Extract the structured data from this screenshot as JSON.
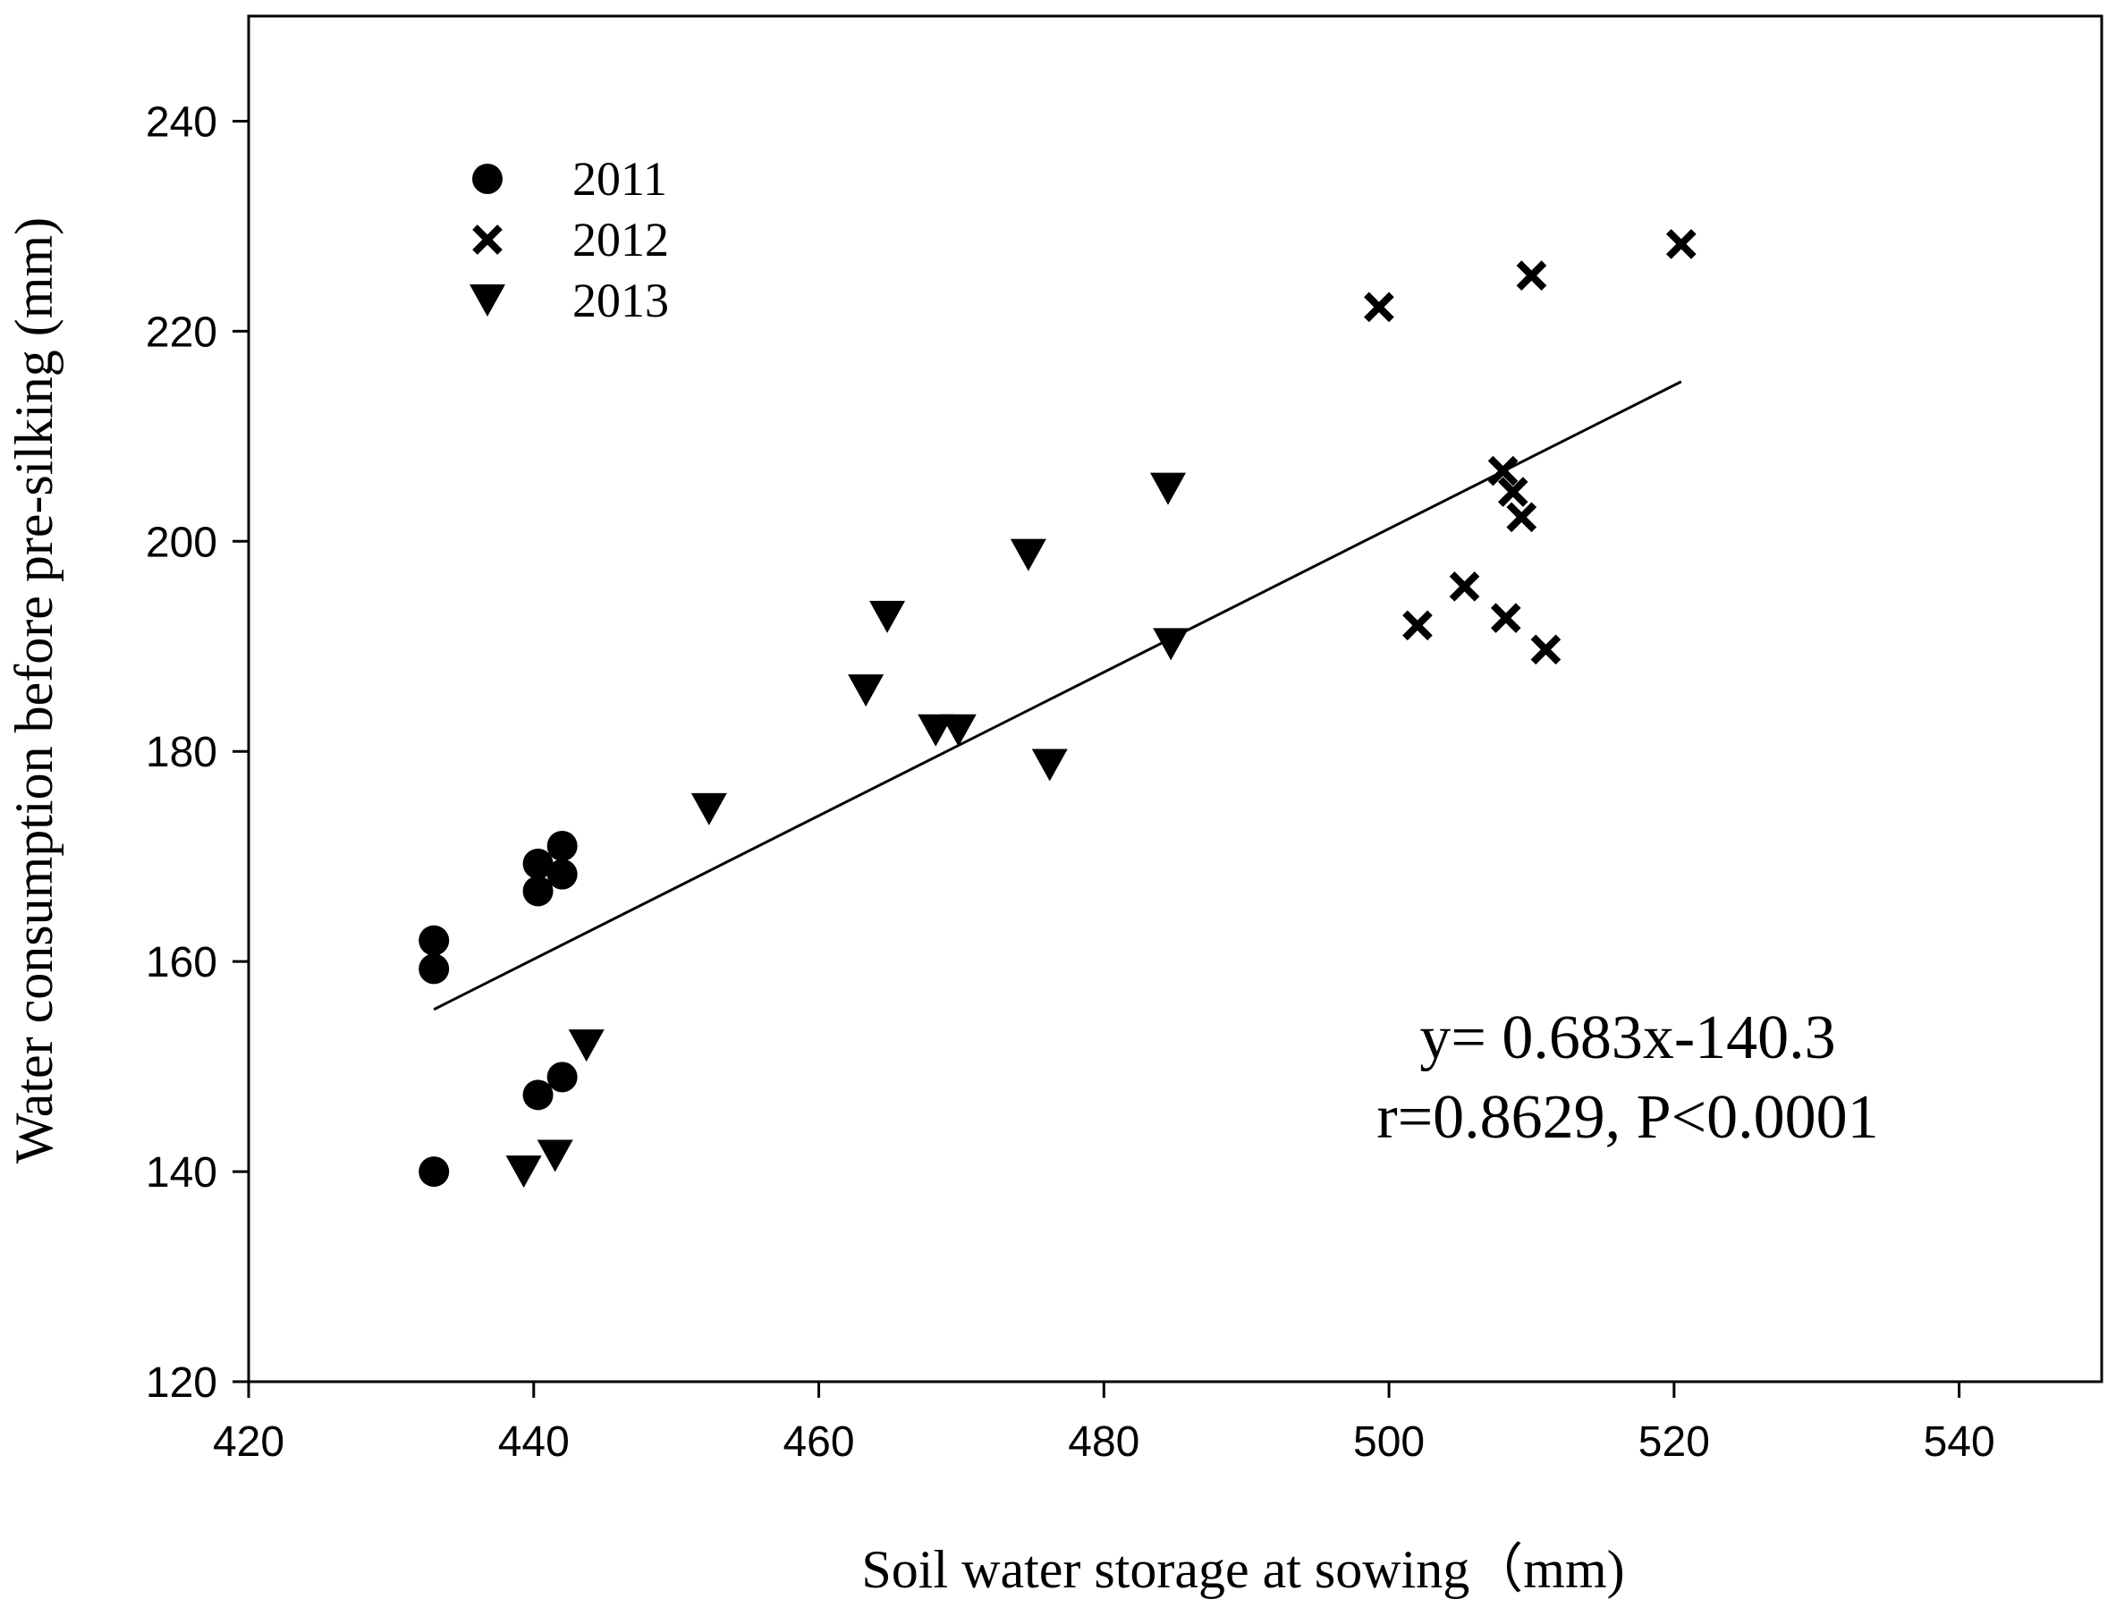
{
  "chart_data": {
    "type": "scatter",
    "title": "",
    "xlabel": "Soil water storage at sowing（mm)",
    "ylabel": "Water consumption before pre-silking (mm)",
    "xlim": [
      420,
      550
    ],
    "ylim": [
      120,
      250
    ],
    "xticks": [
      420,
      440,
      460,
      480,
      500,
      520,
      540
    ],
    "yticks": [
      120,
      140,
      160,
      180,
      200,
      220,
      240
    ],
    "series": [
      {
        "name": "2011",
        "marker": "circle",
        "points": [
          [
            433,
            162
          ],
          [
            433,
            159.3
          ],
          [
            433,
            140
          ],
          [
            440.3,
            169.3
          ],
          [
            440.3,
            166.7
          ],
          [
            440.3,
            147.3
          ],
          [
            442,
            171
          ],
          [
            442,
            168.3
          ],
          [
            442,
            149
          ]
        ]
      },
      {
        "name": "2012",
        "marker": "x",
        "points": [
          [
            499.3,
            222.3
          ],
          [
            510,
            225.3
          ],
          [
            520.5,
            228.3
          ],
          [
            508,
            206.7
          ],
          [
            508.7,
            204.7
          ],
          [
            509.3,
            202.3
          ],
          [
            502,
            192
          ],
          [
            505.3,
            195.7
          ],
          [
            508.2,
            192.7
          ],
          [
            511,
            189.7
          ]
        ]
      },
      {
        "name": "2013",
        "marker": "triangle-down",
        "points": [
          [
            439.3,
            140
          ],
          [
            441.5,
            141.5
          ],
          [
            443.7,
            152
          ],
          [
            452.3,
            174.5
          ],
          [
            463.3,
            185.8
          ],
          [
            464.8,
            192.8
          ],
          [
            468.2,
            182
          ],
          [
            469.8,
            182
          ],
          [
            474.7,
            198.7
          ],
          [
            476.2,
            178.7
          ],
          [
            484.5,
            205
          ],
          [
            484.7,
            190.2
          ]
        ]
      }
    ],
    "regression": {
      "slope": 0.683,
      "intercept": -140.3,
      "x_range": [
        433,
        520.5
      ],
      "equation_label": "y= 0.683x-140.3",
      "stats_label": "r=0.8629, P<0.0001"
    },
    "legend_position": "top-left",
    "grid": false
  }
}
